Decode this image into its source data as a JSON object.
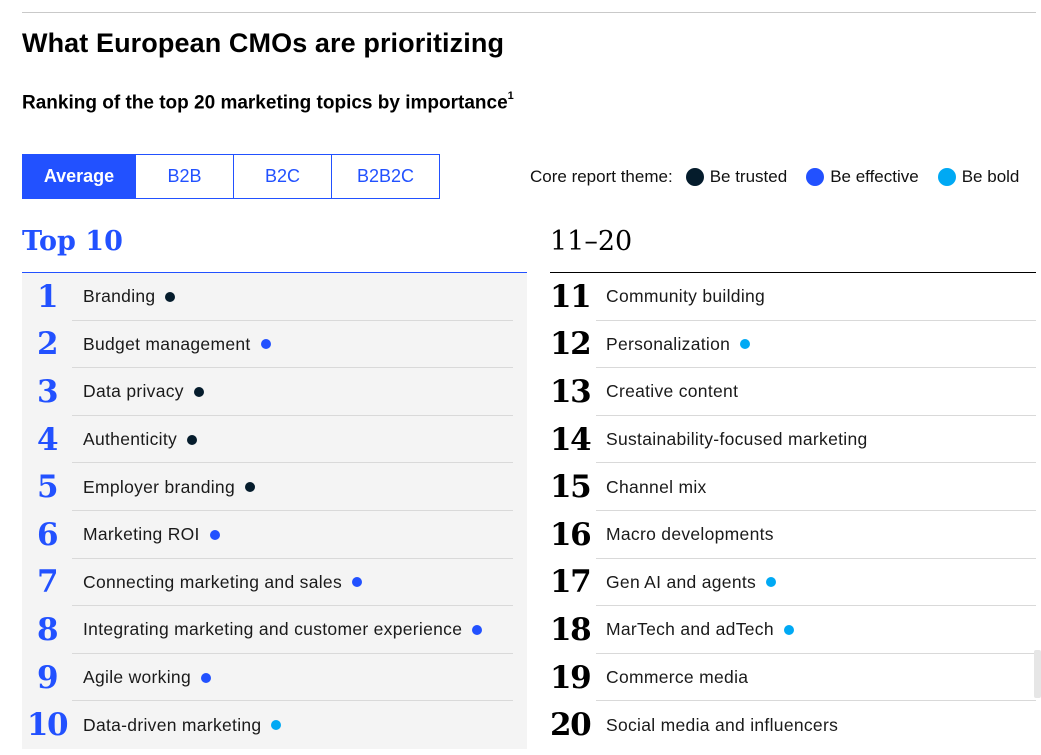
{
  "title": "What European CMOs are prioritizing",
  "subtitle": "Ranking of the top 20 marketing topics by importance",
  "subtitle_footnote": "1",
  "tabs": [
    {
      "label": "Average",
      "active": true
    },
    {
      "label": "B2B",
      "active": false
    },
    {
      "label": "B2C",
      "active": false
    },
    {
      "label": "B2B2C",
      "active": false
    }
  ],
  "legend": {
    "title": "Core report theme:",
    "items": [
      {
        "label": "Be trusted",
        "theme": "trusted"
      },
      {
        "label": "Be effective",
        "theme": "effective"
      },
      {
        "label": "Be bold",
        "theme": "bold"
      }
    ]
  },
  "colors": {
    "accent": "#2251ff",
    "trusted": "#051c2c",
    "effective": "#2251ff",
    "bold": "#00a9f4"
  },
  "chart_data": {
    "type": "table",
    "columns": [
      {
        "header": "Top 10",
        "items": [
          {
            "rank": "1",
            "topic": "Branding",
            "theme": "trusted"
          },
          {
            "rank": "2",
            "topic": "Budget management",
            "theme": "effective"
          },
          {
            "rank": "3",
            "topic": "Data privacy",
            "theme": "trusted"
          },
          {
            "rank": "4",
            "topic": "Authenticity",
            "theme": "trusted"
          },
          {
            "rank": "5",
            "topic": "Employer branding",
            "theme": "trusted"
          },
          {
            "rank": "6",
            "topic": "Marketing ROI",
            "theme": "effective"
          },
          {
            "rank": "7",
            "topic": "Connecting marketing and sales",
            "theme": "effective"
          },
          {
            "rank": "8",
            "topic": "Integrating marketing and customer experience",
            "theme": "effective"
          },
          {
            "rank": "9",
            "topic": "Agile working",
            "theme": "effective"
          },
          {
            "rank": "10",
            "topic": "Data-driven marketing",
            "theme": "bold"
          }
        ]
      },
      {
        "header": "11–20",
        "items": [
          {
            "rank": "11",
            "topic": "Community building",
            "theme": null
          },
          {
            "rank": "12",
            "topic": "Personalization",
            "theme": "bold"
          },
          {
            "rank": "13",
            "topic": "Creative content",
            "theme": null
          },
          {
            "rank": "14",
            "topic": "Sustainability-focused marketing",
            "theme": null
          },
          {
            "rank": "15",
            "topic": "Channel mix",
            "theme": null
          },
          {
            "rank": "16",
            "topic": "Macro developments",
            "theme": null
          },
          {
            "rank": "17",
            "topic": "Gen AI and agents",
            "theme": "bold"
          },
          {
            "rank": "18",
            "topic": "MarTech and adTech",
            "theme": "bold"
          },
          {
            "rank": "19",
            "topic": "Commerce media",
            "theme": null
          },
          {
            "rank": "20",
            "topic": "Social media and influencers",
            "theme": null
          }
        ]
      }
    ]
  }
}
